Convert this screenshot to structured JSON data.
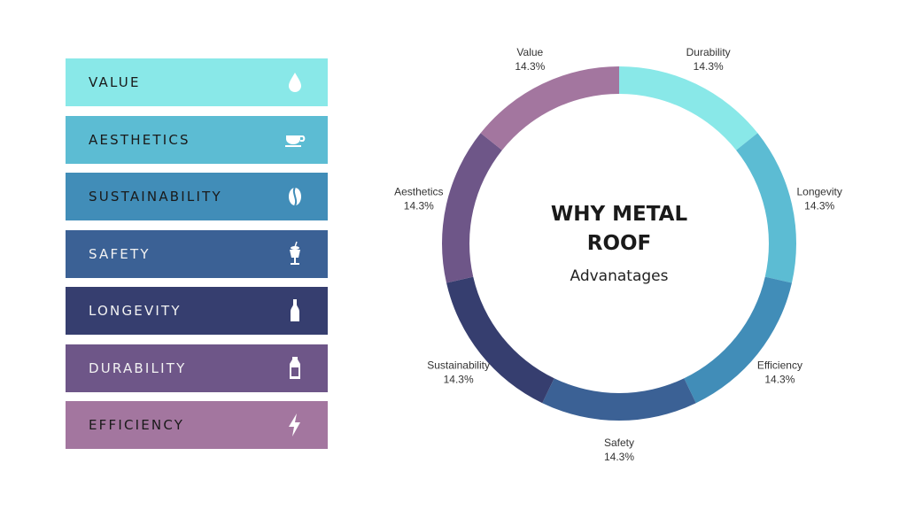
{
  "legend": {
    "items": [
      {
        "label": "VALUE",
        "icon": "water-drop-icon",
        "color": "#89E8E8",
        "text_color": "#1a1a1a"
      },
      {
        "label": "AESTHETICS",
        "icon": "coffee-cup-icon",
        "color": "#5CBCD3",
        "text_color": "#1a1a1a"
      },
      {
        "label": "SUSTAINABILITY",
        "icon": "coffee-bean-icon",
        "color": "#418DB8",
        "text_color": "#1a1a1a"
      },
      {
        "label": "SAFETY",
        "icon": "milkshake-glass-icon",
        "color": "#3B6195",
        "text_color": "#f2f2f2"
      },
      {
        "label": "LONGEVITY",
        "icon": "soda-bottle-icon",
        "color": "#363E6F",
        "text_color": "#f2f2f2"
      },
      {
        "label": "DURABILITY",
        "icon": "milk-bottle-icon",
        "color": "#6E5688",
        "text_color": "#f2f2f2"
      },
      {
        "label": "EFFICIENCY",
        "icon": "lightning-bolt-icon",
        "color": "#A3769F",
        "text_color": "#1a1a1a"
      }
    ]
  },
  "chart_data": {
    "type": "pie",
    "title": "WHY METAL ROOF",
    "subtitle": "Advanatages",
    "categories": [
      "Durability",
      "Longevity",
      "Efficiency",
      "Safety",
      "Sustainability",
      "Aesthetics",
      "Value"
    ],
    "values": [
      14.3,
      14.3,
      14.3,
      14.3,
      14.3,
      14.3,
      14.3
    ],
    "value_labels": [
      "14.3%",
      "14.3%",
      "14.3%",
      "14.3%",
      "14.3%",
      "14.3%",
      "14.3%"
    ],
    "colors": [
      "#89E8E8",
      "#5CBCD3",
      "#418DB8",
      "#3B6195",
      "#363E6F",
      "#6E5688",
      "#A3769F"
    ],
    "donut": true,
    "legend": "left"
  }
}
